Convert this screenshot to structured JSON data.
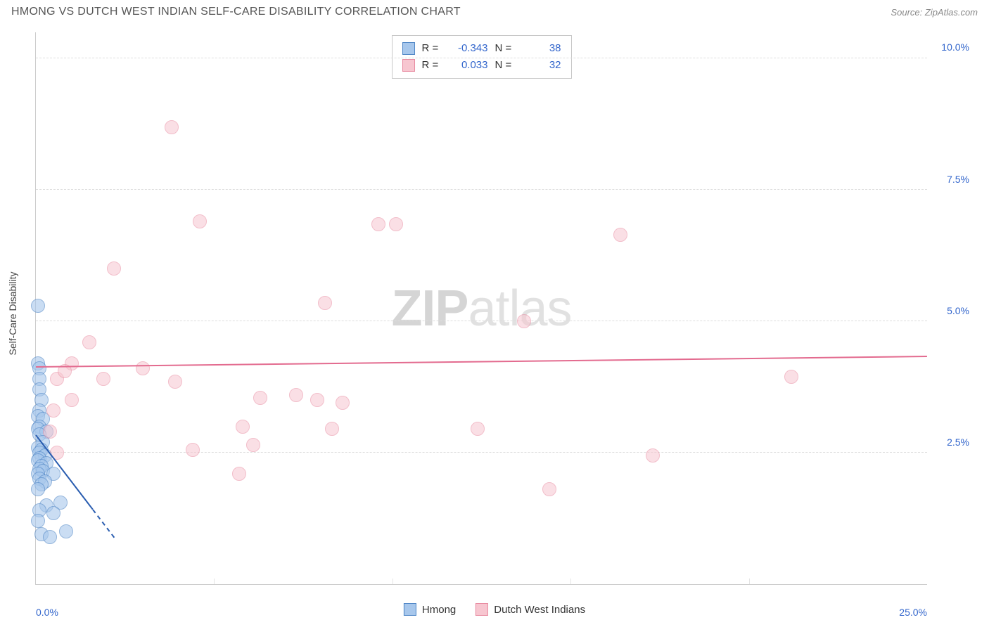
{
  "header": {
    "title": "HMONG VS DUTCH WEST INDIAN SELF-CARE DISABILITY CORRELATION CHART",
    "source": "Source: ZipAtlas.com"
  },
  "chart": {
    "type": "scatter",
    "background_color": "#ffffff",
    "grid_color": "#dddddd",
    "axis_color": "#cccccc",
    "y_axis_label": "Self-Care Disability",
    "x_range": [
      0,
      25
    ],
    "y_range": [
      0,
      10.5
    ],
    "y_ticks": [
      {
        "v": 2.5,
        "label": "2.5%"
      },
      {
        "v": 5.0,
        "label": "5.0%"
      },
      {
        "v": 7.5,
        "label": "7.5%"
      },
      {
        "v": 10.0,
        "label": "10.0%"
      }
    ],
    "x_ticks_minor": [
      5,
      10,
      15,
      20
    ],
    "x_ticks_labeled": [
      {
        "v": 0,
        "label": "0.0%",
        "align": "left"
      },
      {
        "v": 25,
        "label": "25.0%",
        "align": "right"
      }
    ],
    "tick_label_color": "#3366cc",
    "tick_label_fontsize": 14,
    "watermark": {
      "text_bold": "ZIP",
      "text_rest": "atlas"
    },
    "marker_radius": 10,
    "series": [
      {
        "name": "Hmong",
        "fill": "#a7c7ec",
        "stroke": "#4f86c6",
        "stroke_width": 1,
        "fill_opacity": 0.6,
        "points": [
          [
            0.05,
            5.3
          ],
          [
            0.05,
            4.2
          ],
          [
            0.1,
            4.1
          ],
          [
            0.1,
            3.9
          ],
          [
            0.1,
            3.7
          ],
          [
            0.15,
            3.5
          ],
          [
            0.1,
            3.3
          ],
          [
            0.05,
            3.2
          ],
          [
            0.2,
            3.15
          ],
          [
            0.1,
            3.0
          ],
          [
            0.05,
            2.95
          ],
          [
            0.3,
            2.9
          ],
          [
            0.1,
            2.85
          ],
          [
            0.2,
            2.7
          ],
          [
            0.05,
            2.6
          ],
          [
            0.15,
            2.55
          ],
          [
            0.1,
            2.5
          ],
          [
            0.25,
            2.45
          ],
          [
            0.1,
            2.4
          ],
          [
            0.05,
            2.35
          ],
          [
            0.3,
            2.3
          ],
          [
            0.15,
            2.25
          ],
          [
            0.1,
            2.2
          ],
          [
            0.2,
            2.15
          ],
          [
            0.05,
            2.1
          ],
          [
            0.5,
            2.1
          ],
          [
            0.1,
            2.0
          ],
          [
            0.25,
            1.95
          ],
          [
            0.15,
            1.9
          ],
          [
            0.05,
            1.8
          ],
          [
            0.7,
            1.55
          ],
          [
            0.3,
            1.5
          ],
          [
            0.1,
            1.4
          ],
          [
            0.5,
            1.35
          ],
          [
            0.05,
            1.2
          ],
          [
            0.85,
            1.0
          ],
          [
            0.15,
            0.95
          ],
          [
            0.4,
            0.9
          ]
        ],
        "trend": {
          "x1": 0,
          "y1": 2.85,
          "x2": 2.2,
          "y2": 0.9,
          "color": "#2a5db0",
          "dash_after_x": 1.6
        }
      },
      {
        "name": "Dutch West Indians",
        "fill": "#f7c6d0",
        "stroke": "#e88aa0",
        "stroke_width": 1,
        "fill_opacity": 0.55,
        "points": [
          [
            3.8,
            8.7
          ],
          [
            4.6,
            6.9
          ],
          [
            2.2,
            6.0
          ],
          [
            9.6,
            6.85
          ],
          [
            10.1,
            6.85
          ],
          [
            16.4,
            6.65
          ],
          [
            8.1,
            5.35
          ],
          [
            13.7,
            5.0
          ],
          [
            1.5,
            4.6
          ],
          [
            1.0,
            4.2
          ],
          [
            0.6,
            3.9
          ],
          [
            1.9,
            3.9
          ],
          [
            3.0,
            4.1
          ],
          [
            3.9,
            3.85
          ],
          [
            21.2,
            3.95
          ],
          [
            1.0,
            3.5
          ],
          [
            6.3,
            3.55
          ],
          [
            7.3,
            3.6
          ],
          [
            7.9,
            3.5
          ],
          [
            8.6,
            3.45
          ],
          [
            0.5,
            3.3
          ],
          [
            5.8,
            3.0
          ],
          [
            8.3,
            2.95
          ],
          [
            12.4,
            2.95
          ],
          [
            4.4,
            2.55
          ],
          [
            6.1,
            2.65
          ],
          [
            17.3,
            2.45
          ],
          [
            5.7,
            2.1
          ],
          [
            14.4,
            1.8
          ],
          [
            0.4,
            2.9
          ],
          [
            0.6,
            2.5
          ],
          [
            0.8,
            4.05
          ]
        ],
        "trend": {
          "x1": 0,
          "y1": 4.15,
          "x2": 25,
          "y2": 4.35,
          "color": "#e36b8f"
        }
      }
    ]
  },
  "stats_box": {
    "rows": [
      {
        "swatch_fill": "#a7c7ec",
        "swatch_stroke": "#4f86c6",
        "r_label": "R =",
        "r_value": "-0.343",
        "n_label": "N =",
        "n_value": "38"
      },
      {
        "swatch_fill": "#f7c6d0",
        "swatch_stroke": "#e88aa0",
        "r_label": "R =",
        "r_value": "0.033",
        "n_label": "N =",
        "n_value": "32"
      }
    ]
  },
  "legend": {
    "items": [
      {
        "swatch_fill": "#a7c7ec",
        "swatch_stroke": "#4f86c6",
        "label": "Hmong"
      },
      {
        "swatch_fill": "#f7c6d0",
        "swatch_stroke": "#e88aa0",
        "label": "Dutch West Indians"
      }
    ]
  }
}
